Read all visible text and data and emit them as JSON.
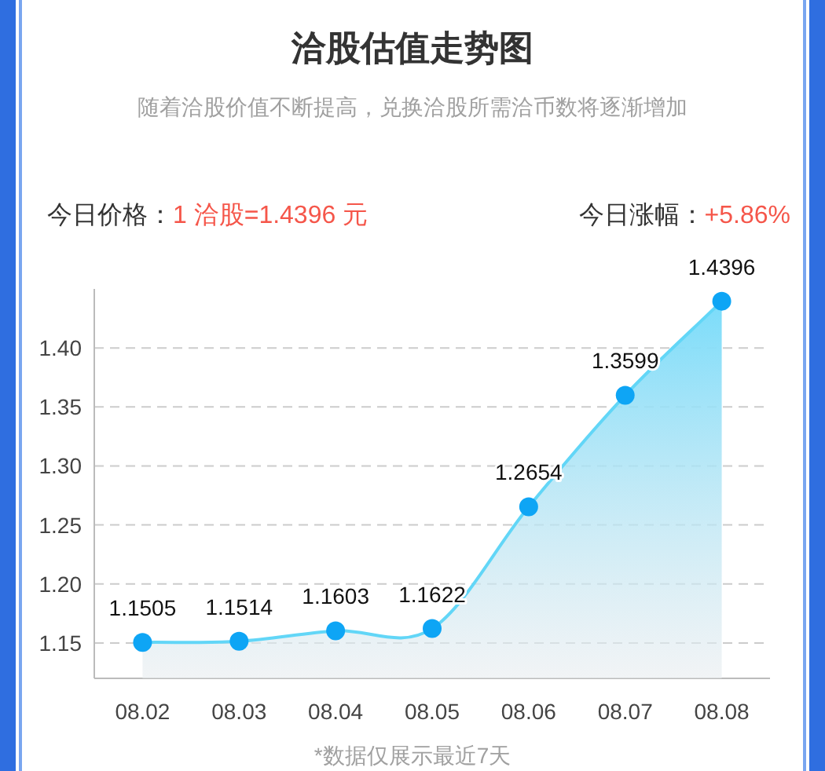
{
  "chart_data": {
    "type": "area",
    "title": "洽股估值走势图",
    "subtitle": "随着洽股价值不断提高，兑换洽股所需洽币数将逐渐增加",
    "annotations": [
      "今日价格：",
      "1 洽股=1.4396 元",
      "今日涨幅：",
      "+5.86%",
      "*数据仅展示最近7天"
    ],
    "categories": [
      "08.02",
      "08.03",
      "08.04",
      "08.05",
      "08.06",
      "08.07",
      "08.08"
    ],
    "series": [
      {
        "color": "#0ea5f5",
        "values": [
          1.1505,
          1.1514,
          1.1603,
          1.1622,
          1.2654,
          1.3599,
          1.4396
        ]
      }
    ],
    "ylim": [
      1.12,
      1.45
    ],
    "yticks": [
      1.15,
      {
        "value": 1.2,
        "label": "1.20"
      },
      1.25,
      {
        "value": 1.3,
        "label": "1.30"
      },
      1.35,
      {
        "value": 1.4,
        "label": "1.40"
      }
    ],
    "grid": "y",
    "marker": "circle",
    "data_labels": true
  }
}
